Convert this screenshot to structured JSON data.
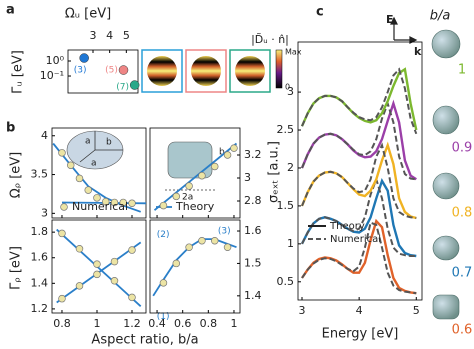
{
  "panel_labels": [
    "a",
    "b",
    "c"
  ],
  "b_x_label": "Aspect ratio, b/a",
  "chart_data": [
    {
      "type": "scatter",
      "x_label": "Ωᵤ [eV]",
      "y_label": "Γᵤ [eV]",
      "xlim": [
        1.5,
        5.7
      ],
      "ylim": [
        0.0074,
        5.4
      ],
      "log_y": true,
      "xticks": [
        3,
        4,
        5
      ],
      "yticks": [
        {
          "value": 1,
          "label": "10⁰"
        },
        {
          "value": 0.1,
          "label": "10⁻¹"
        }
      ],
      "series": [
        {
          "name": "(3)",
          "color": "#1f77d4",
          "x": [
            2.47
          ],
          "values": [
            1.58
          ]
        },
        {
          "name": "(5)",
          "color": "#ee8585",
          "x": [
            4.83
          ],
          "values": [
            0.25
          ]
        },
        {
          "name": "(7)",
          "color": "#2aa889",
          "x": [
            5.5
          ],
          "values": [
            0.025
          ]
        }
      ],
      "colorbar_label": "|D̃ᵤ · n̂|",
      "colorbar_max": "Max",
      "colorbar_min": 0
    },
    {
      "type": "line",
      "y_label": "Ωᵨ [eV]",
      "xlim": [
        0.743,
        1.28
      ],
      "ylim": [
        2.94,
        4.1
      ],
      "xticks": [
        0.8,
        1,
        1.2
      ],
      "yticks": [
        3,
        3.5,
        4
      ],
      "inset_labels": [
        "a",
        "b",
        "a"
      ],
      "series": [
        {
          "style": "line",
          "color": "#2a7fc9",
          "x": [
            0.75,
            0.85,
            0.95,
            1.05,
            1.15,
            1.25
          ],
          "values": [
            3.9,
            3.62,
            3.35,
            3.2,
            3.1,
            3.02
          ]
        },
        {
          "style": "line",
          "color": "#2a7fc9",
          "x": [
            0.8,
            1.28
          ],
          "values": [
            3.14,
            3.13
          ]
        },
        {
          "style": "markers",
          "name": "Numerical",
          "color": "#ece4a4",
          "x": [
            0.8,
            0.85,
            0.9,
            0.95,
            1.0,
            1.05,
            1.1,
            1.15,
            1.2
          ],
          "values": [
            3.78,
            3.62,
            3.45,
            3.3,
            3.2,
            3.15,
            3.14,
            3.14,
            3.13
          ]
        }
      ]
    },
    {
      "type": "line",
      "xlim": [
        0.345,
        1.047
      ],
      "ylim": [
        2.652,
        3.435
      ],
      "xticks": [
        0.4,
        0.6,
        0.8,
        1
      ],
      "yticks": [
        2.8,
        3,
        3.2
      ],
      "inset_labels": [
        "b",
        "2a"
      ],
      "series": [
        {
          "style": "line",
          "name": "Theory",
          "color": "#2a7fc9",
          "x": [
            0.38,
            1.02
          ],
          "values": [
            2.72,
            3.3
          ]
        },
        {
          "style": "markers",
          "color": "#ece4a4",
          "x": [
            0.45,
            0.55,
            0.65,
            0.75,
            0.85,
            0.95,
            1.0
          ],
          "values": [
            2.76,
            2.84,
            2.93,
            3.02,
            3.1,
            3.2,
            3.26
          ]
        }
      ]
    },
    {
      "type": "line",
      "y_label": "Γᵨ [eV]",
      "xlim": [
        0.743,
        1.28
      ],
      "ylim": [
        1.168,
        1.895
      ],
      "xticks": [
        0.8,
        1,
        1.2
      ],
      "yticks": [
        1.2,
        1.4,
        1.6,
        1.8
      ],
      "series": [
        {
          "style": "line",
          "name": "(2)",
          "color": "#2a7fc9",
          "x": [
            0.77,
            1.25
          ],
          "values": [
            1.25,
            1.72
          ]
        },
        {
          "style": "line",
          "name": "(1)",
          "color": "#2a7fc9",
          "x": [
            0.77,
            1.25
          ],
          "values": [
            1.82,
            1.22
          ]
        },
        {
          "style": "markers",
          "color": "#ece4a4",
          "x": [
            0.8,
            0.9,
            1.0,
            1.1,
            1.2
          ],
          "values": [
            1.28,
            1.38,
            1.47,
            1.57,
            1.66
          ]
        },
        {
          "style": "markers",
          "color": "#ece4a4",
          "x": [
            0.8,
            0.9,
            1.0,
            1.1,
            1.2
          ],
          "values": [
            1.79,
            1.67,
            1.55,
            1.42,
            1.29
          ]
        }
      ]
    },
    {
      "type": "line",
      "xlim": [
        0.345,
        1.047
      ],
      "ylim": [
        1.347,
        1.634
      ],
      "xticks": [
        0.4,
        0.6,
        0.8,
        1
      ],
      "yticks": [
        1.4,
        1.5,
        1.6
      ],
      "series": [
        {
          "style": "line",
          "name": "(3)",
          "color": "#2a7fc9",
          "x": [
            0.37,
            0.45,
            0.55,
            0.65,
            0.75,
            0.85,
            0.95,
            1.02
          ],
          "values": [
            1.4,
            1.45,
            1.51,
            1.55,
            1.575,
            1.575,
            1.56,
            1.55
          ]
        },
        {
          "style": "markers",
          "color": "#ece4a4",
          "x": [
            0.45,
            0.55,
            0.65,
            0.75,
            0.85,
            0.95
          ],
          "values": [
            1.44,
            1.5,
            1.55,
            1.57,
            1.57,
            1.55
          ]
        }
      ]
    },
    {
      "type": "spectra",
      "x_label": "Energy [eV]",
      "y_label": "σₑₓₜ [a.u.]",
      "xlim": [
        2.93,
        5.1
      ],
      "ylim": [
        0.26,
        3.66
      ],
      "xticks": [
        3,
        4,
        5
      ],
      "yticks": [
        0.5,
        1,
        1.5,
        2,
        2.5,
        3
      ],
      "legend": [
        "Theory",
        "Numerical"
      ],
      "series_title": "b/a",
      "polarization_labels": [
        "E",
        "k"
      ],
      "x": [
        3.0,
        3.1,
        3.2,
        3.3,
        3.4,
        3.5,
        3.6,
        3.7,
        3.8,
        3.9,
        4.0,
        4.1,
        4.2,
        4.3,
        4.4,
        4.5,
        4.6,
        4.7,
        4.8,
        4.9,
        5.0
      ],
      "series": [
        {
          "name": "0.6",
          "color": "#e0622a",
          "values": [
            0.55,
            0.66,
            0.75,
            0.8,
            0.82,
            0.81,
            0.78,
            0.73,
            0.67,
            0.62,
            0.62,
            0.75,
            1.05,
            1.3,
            1.22,
            0.85,
            0.55,
            0.42,
            0.38,
            0.36,
            0.35
          ],
          "numerical_values": [
            0.55,
            0.66,
            0.74,
            0.79,
            0.81,
            0.8,
            0.77,
            0.72,
            0.67,
            0.64,
            0.7,
            0.95,
            1.28,
            1.25,
            0.95,
            0.62,
            0.45,
            0.39,
            0.37,
            0.36,
            0.35
          ]
        },
        {
          "name": "0.7",
          "color": "#1f77b4",
          "values": [
            1.0,
            1.15,
            1.27,
            1.33,
            1.35,
            1.33,
            1.3,
            1.25,
            1.2,
            1.16,
            1.15,
            1.2,
            1.35,
            1.6,
            1.83,
            1.7,
            1.25,
            0.98,
            0.88,
            0.85,
            0.84
          ],
          "numerical_values": [
            1.0,
            1.15,
            1.27,
            1.33,
            1.35,
            1.33,
            1.3,
            1.25,
            1.2,
            1.17,
            1.2,
            1.35,
            1.65,
            1.85,
            1.6,
            1.2,
            0.95,
            0.87,
            0.85,
            0.84,
            0.84
          ]
        },
        {
          "name": "0.8",
          "color": "#f0b323",
          "values": [
            1.5,
            1.68,
            1.82,
            1.9,
            1.94,
            1.95,
            1.93,
            1.88,
            1.8,
            1.72,
            1.65,
            1.63,
            1.7,
            1.85,
            2.1,
            2.3,
            2.05,
            1.6,
            1.42,
            1.36,
            1.34
          ],
          "numerical_values": [
            1.5,
            1.68,
            1.82,
            1.9,
            1.94,
            1.95,
            1.93,
            1.88,
            1.8,
            1.73,
            1.68,
            1.7,
            1.85,
            2.15,
            2.3,
            2.0,
            1.6,
            1.42,
            1.37,
            1.35,
            1.34
          ]
        },
        {
          "name": "0.9",
          "color": "#9b3fa8",
          "values": [
            2.0,
            2.18,
            2.32,
            2.4,
            2.44,
            2.45,
            2.43,
            2.38,
            2.31,
            2.23,
            2.17,
            2.14,
            2.15,
            2.22,
            2.38,
            2.62,
            2.85,
            2.6,
            2.1,
            1.9,
            1.85
          ],
          "numerical_values": [
            2.0,
            2.18,
            2.32,
            2.4,
            2.44,
            2.45,
            2.43,
            2.38,
            2.31,
            2.24,
            2.18,
            2.17,
            2.22,
            2.38,
            2.65,
            2.85,
            2.6,
            2.15,
            1.92,
            1.86,
            1.85
          ]
        },
        {
          "name": "1",
          "color": "#7cb82f",
          "values": [
            2.55,
            2.72,
            2.85,
            2.92,
            2.95,
            2.95,
            2.93,
            2.88,
            2.8,
            2.72,
            2.66,
            2.62,
            2.6,
            2.63,
            2.72,
            2.88,
            3.08,
            3.25,
            3.3,
            2.85,
            2.5
          ],
          "numerical_values": [
            2.55,
            2.72,
            2.85,
            2.92,
            2.95,
            2.95,
            2.93,
            2.88,
            2.8,
            2.73,
            2.67,
            2.64,
            2.63,
            2.67,
            2.8,
            3.0,
            3.22,
            3.3,
            3.05,
            2.65,
            2.45
          ]
        }
      ]
    }
  ]
}
